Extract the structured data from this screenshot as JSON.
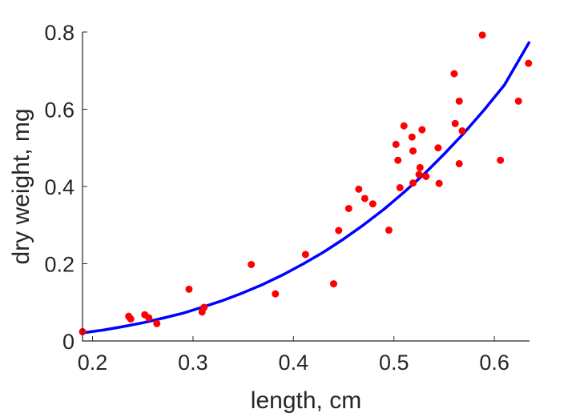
{
  "chart_data": {
    "type": "scatter",
    "title": "",
    "xlabel": "length, cm",
    "ylabel": "dry weight, mg",
    "xlim": [
      0.19,
      0.635
    ],
    "ylim": [
      0,
      0.8
    ],
    "xticks": [
      0.2,
      0.3,
      0.4,
      0.5,
      0.6
    ],
    "yticks": [
      0,
      0.2,
      0.4,
      0.6,
      0.8
    ],
    "xtick_labels": [
      "0.2",
      "0.3",
      "0.4",
      "0.5",
      "0.6"
    ],
    "ytick_labels": [
      "0",
      "0.2",
      "0.4",
      "0.6",
      "0.8"
    ],
    "grid": false,
    "legend": "none",
    "series": [
      {
        "kind": "scatter",
        "color": "#ff0000",
        "x": [
          0.19,
          0.236,
          0.237,
          0.238,
          0.252,
          0.256,
          0.264,
          0.296,
          0.309,
          0.311,
          0.358,
          0.382,
          0.412,
          0.44,
          0.445,
          0.455,
          0.465,
          0.471,
          0.479,
          0.495,
          0.502,
          0.504,
          0.506,
          0.51,
          0.518,
          0.519,
          0.519,
          0.525,
          0.526,
          0.528,
          0.532,
          0.544,
          0.545,
          0.56,
          0.561,
          0.565,
          0.565,
          0.568,
          0.588,
          0.606,
          0.624,
          0.634
        ],
        "y": [
          0.024,
          0.064,
          0.06,
          0.057,
          0.068,
          0.06,
          0.045,
          0.134,
          0.075,
          0.087,
          0.198,
          0.122,
          0.224,
          0.148,
          0.286,
          0.343,
          0.393,
          0.369,
          0.355,
          0.287,
          0.509,
          0.468,
          0.397,
          0.557,
          0.528,
          0.492,
          0.409,
          0.431,
          0.449,
          0.547,
          0.426,
          0.5,
          0.408,
          0.692,
          0.563,
          0.621,
          0.459,
          0.544,
          0.792,
          0.468,
          0.621,
          0.719
        ]
      },
      {
        "kind": "line",
        "color": "#0000ff",
        "x": [
          0.19,
          0.21,
          0.23,
          0.25,
          0.27,
          0.29,
          0.31,
          0.33,
          0.35,
          0.37,
          0.39,
          0.41,
          0.43,
          0.45,
          0.47,
          0.49,
          0.51,
          0.53,
          0.55,
          0.57,
          0.59,
          0.61,
          0.635
        ],
        "y": [
          0.021,
          0.028,
          0.037,
          0.047,
          0.059,
          0.072,
          0.088,
          0.105,
          0.125,
          0.147,
          0.172,
          0.2,
          0.23,
          0.264,
          0.301,
          0.341,
          0.385,
          0.432,
          0.484,
          0.539,
          0.599,
          0.663,
          0.775
        ]
      }
    ]
  }
}
